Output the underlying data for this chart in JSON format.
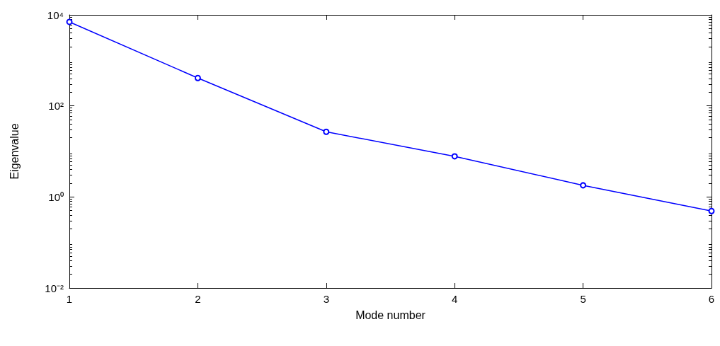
{
  "chart_data": {
    "type": "line",
    "xlabel": "Mode number",
    "ylabel": "Eigenvalue",
    "x": [
      1,
      2,
      3,
      4,
      5,
      6
    ],
    "series": [
      {
        "color": "#0000ff",
        "values": [
          7000,
          410,
          27,
          7.8,
          1.8,
          0.49
        ]
      }
    ],
    "xlim": [
      1,
      6
    ],
    "xticks": [
      1,
      2,
      3,
      4,
      5,
      6
    ],
    "ylim": [
      0.01,
      10000
    ],
    "yticks": [
      {
        "value": 0.01,
        "label": "10⁻²"
      },
      {
        "value": 1,
        "label": "10⁰"
      },
      {
        "value": 100,
        "label": "10²"
      },
      {
        "value": 10000,
        "label": "10⁴"
      }
    ],
    "log": "y",
    "marker": "circle",
    "line_style": "solid",
    "grid": false
  }
}
